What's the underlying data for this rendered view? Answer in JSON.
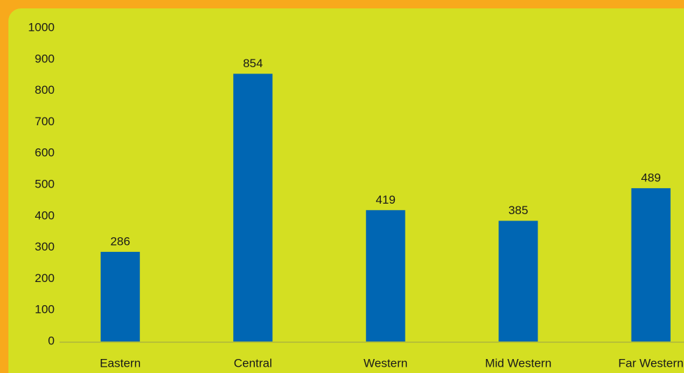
{
  "chart_data": {
    "type": "bar",
    "categories": [
      "Eastern",
      "Central",
      "Western",
      "Mid Western",
      "Far Western"
    ],
    "values": [
      286,
      854,
      419,
      385,
      489
    ],
    "color": "#0066b3",
    "ylim": [
      0,
      1000
    ],
    "yticks": [
      0,
      100,
      200,
      300,
      400,
      500,
      600,
      700,
      800,
      900,
      1000
    ],
    "grid": false
  }
}
